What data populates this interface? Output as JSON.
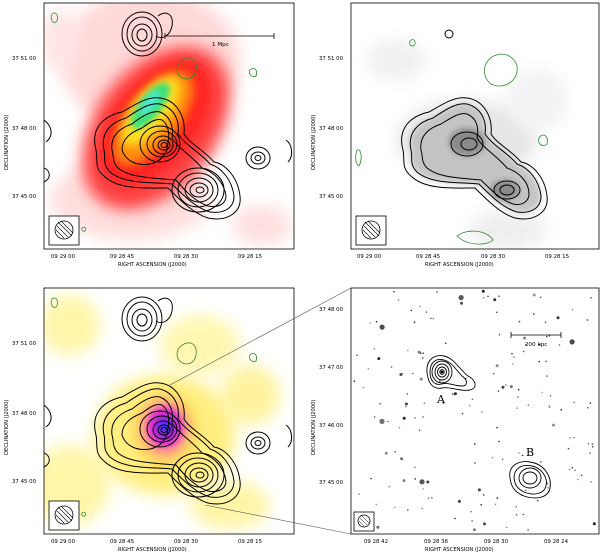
{
  "panels": {
    "top_left": {
      "ra_ticks": [
        "09 29 00",
        "09 28 45",
        "09 28 30",
        "09 28 15"
      ],
      "dec_ticks": [
        "37 51 00",
        "37 48 00",
        "37 45 00"
      ],
      "xlabel": "RIGHT ASCENSION  (J2000)",
      "ylabel": "DECLINATION  (J2000)",
      "scalebar": "1 Mpc"
    },
    "top_right": {
      "ra_ticks": [
        "09 29 00",
        "09 28 45",
        "09 28 30",
        "09 28 15"
      ],
      "dec_ticks": [
        "37 51 00",
        "37 48 00",
        "37 45 00"
      ],
      "xlabel": "RIGHT ASCENSION  (J2000)",
      "ylabel": "DECLINATION  (J2000)"
    },
    "bottom_left": {
      "ra_ticks": [
        "09 29 00",
        "09 28 45",
        "09 28 30",
        "09 28 15"
      ],
      "dec_ticks": [
        "37 51 00",
        "37 48 00",
        "37 45 00"
      ],
      "xlabel": "RIGHT ASCENSION  (J2000)",
      "ylabel": "DECLINATION  (J2000)"
    },
    "bottom_right": {
      "ra_ticks": [
        "09 28 42",
        "09 28 36",
        "09 28 30",
        "09 28 24"
      ],
      "dec_ticks": [
        "37 48 00",
        "37 47 00",
        "37 46 00",
        "37 45 00"
      ],
      "xlabel": "RIGHT ASCENSION  (J2000)",
      "ylabel": "DECLINATION  (J2000)",
      "scalebar": "200 kpc",
      "source_a": "A",
      "source_b": "B"
    }
  },
  "colors": {
    "contour": "#000000",
    "negative_contour": "#2e8b2e",
    "xray_red": "#ff2a2a",
    "xray_yellow": "#ffe020",
    "xray_green": "#3ee07a",
    "lensing_yellow": "#ffee70",
    "lensing_magenta": "#d020d0",
    "lensing_blue": "#3a3aff",
    "radio_gray": "#6c6c6c"
  }
}
